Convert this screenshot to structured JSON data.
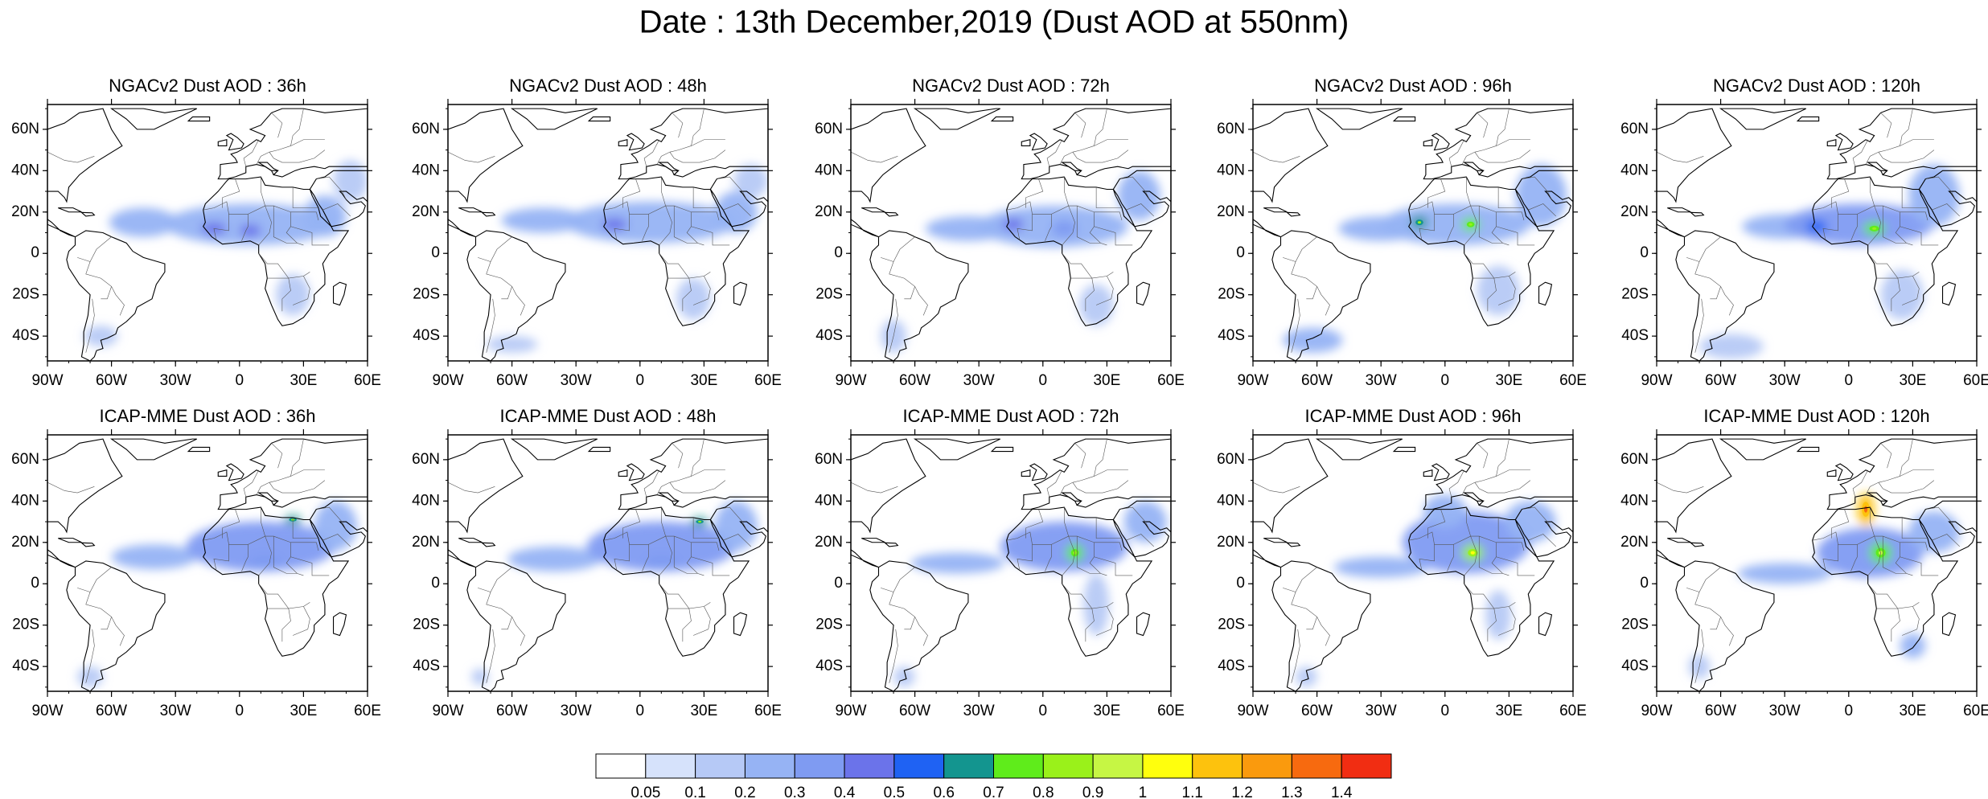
{
  "title": "Date : 13th December,2019 (Dust AOD at 550nm)",
  "panels": [
    {
      "title": "NGACv2 Dust AOD : 36h",
      "model": "NGACv2",
      "lead": "36h",
      "dust": [
        [
          -45,
          15,
          16,
          7,
          0.2
        ],
        [
          5,
          14,
          40,
          10,
          0.25
        ],
        [
          -12,
          12,
          6,
          3,
          0.45
        ],
        [
          5,
          11,
          5,
          3,
          0.4
        ],
        [
          40,
          18,
          10,
          10,
          0.2
        ],
        [
          52,
          35,
          8,
          10,
          0.15
        ],
        [
          -65,
          -40,
          8,
          5,
          0.12
        ],
        [
          25,
          -20,
          8,
          10,
          0.1
        ]
      ]
    },
    {
      "title": "NGACv2 Dust AOD : 48h",
      "model": "NGACv2",
      "lead": "48h",
      "dust": [
        [
          -45,
          16,
          20,
          6,
          0.22
        ],
        [
          5,
          15,
          40,
          10,
          0.25
        ],
        [
          -12,
          14,
          6,
          3,
          0.4
        ],
        [
          45,
          20,
          10,
          10,
          0.2
        ],
        [
          52,
          35,
          8,
          8,
          0.15
        ],
        [
          -60,
          -44,
          12,
          4,
          0.12
        ],
        [
          25,
          -22,
          8,
          10,
          0.1
        ]
      ]
    },
    {
      "title": "NGACv2 Dust AOD : 72h",
      "model": "NGACv2",
      "lead": "72h",
      "dust": [
        [
          -35,
          12,
          20,
          6,
          0.2
        ],
        [
          5,
          13,
          35,
          10,
          0.22
        ],
        [
          -14,
          14,
          5,
          3,
          0.45
        ],
        [
          10,
          12,
          6,
          4,
          0.3
        ],
        [
          45,
          28,
          10,
          12,
          0.2
        ],
        [
          -70,
          -40,
          6,
          8,
          0.15
        ],
        [
          25,
          -25,
          8,
          10,
          0.1
        ]
      ]
    },
    {
      "title": "NGACv2 Dust AOD : 96h",
      "model": "NGACv2",
      "lead": "96h",
      "dust": [
        [
          -30,
          12,
          20,
          6,
          0.22
        ],
        [
          5,
          14,
          35,
          10,
          0.25
        ],
        [
          -12,
          15,
          4,
          3,
          0.6
        ],
        [
          12,
          14,
          4,
          3,
          0.7
        ],
        [
          45,
          28,
          12,
          15,
          0.2
        ],
        [
          -62,
          -42,
          14,
          6,
          0.2
        ],
        [
          25,
          -18,
          10,
          12,
          0.12
        ]
      ]
    },
    {
      "title": "NGACv2 Dust AOD : 120h",
      "model": "NGACv2",
      "lead": "120h",
      "dust": [
        [
          -30,
          13,
          20,
          6,
          0.25
        ],
        [
          5,
          14,
          35,
          10,
          0.3
        ],
        [
          -15,
          13,
          5,
          3,
          0.5
        ],
        [
          12,
          12,
          5,
          3,
          0.7
        ],
        [
          40,
          28,
          12,
          15,
          0.25
        ],
        [
          -55,
          -45,
          15,
          6,
          0.15
        ],
        [
          25,
          -20,
          10,
          12,
          0.15
        ]
      ]
    },
    {
      "title": "ICAP-MME Dust AOD : 36h",
      "model": "ICAP-MME",
      "lead": "36h",
      "dust": [
        [
          -40,
          13,
          20,
          6,
          0.22
        ],
        [
          10,
          18,
          35,
          12,
          0.3
        ],
        [
          25,
          31,
          4,
          2,
          0.6
        ],
        [
          12,
          10,
          8,
          4,
          0.35
        ],
        [
          45,
          28,
          10,
          12,
          0.25
        ],
        [
          -70,
          -45,
          6,
          5,
          0.1
        ]
      ]
    },
    {
      "title": "ICAP-MME Dust AOD : 48h",
      "model": "ICAP-MME",
      "lead": "48h",
      "dust": [
        [
          -40,
          12,
          22,
          6,
          0.22
        ],
        [
          10,
          18,
          35,
          12,
          0.3
        ],
        [
          28,
          30,
          4,
          2,
          0.6
        ],
        [
          10,
          10,
          8,
          4,
          0.3
        ],
        [
          45,
          28,
          10,
          12,
          0.25
        ],
        [
          -75,
          -45,
          4,
          4,
          0.1
        ]
      ]
    },
    {
      "title": "ICAP-MME Dust AOD : 72h",
      "model": "ICAP-MME",
      "lead": "72h",
      "dust": [
        [
          -40,
          10,
          22,
          5,
          0.2
        ],
        [
          10,
          18,
          30,
          12,
          0.3
        ],
        [
          15,
          15,
          4,
          4,
          0.7
        ],
        [
          48,
          30,
          10,
          10,
          0.25
        ],
        [
          25,
          -10,
          6,
          15,
          0.12
        ],
        [
          -65,
          -45,
          5,
          5,
          0.12
        ]
      ]
    },
    {
      "title": "ICAP-MME Dust AOD : 96h",
      "model": "ICAP-MME",
      "lead": "96h",
      "dust": [
        [
          -30,
          8,
          22,
          5,
          0.2
        ],
        [
          10,
          20,
          30,
          15,
          0.3
        ],
        [
          13,
          15,
          5,
          4,
          0.85
        ],
        [
          0,
          35,
          10,
          8,
          0.2
        ],
        [
          40,
          30,
          12,
          10,
          0.25
        ],
        [
          25,
          -15,
          6,
          12,
          0.12
        ],
        [
          -65,
          -45,
          5,
          5,
          0.1
        ]
      ]
    },
    {
      "title": "ICAP-MME Dust AOD : 120h",
      "model": "ICAP-MME",
      "lead": "120h",
      "dust": [
        [
          -30,
          5,
          22,
          5,
          0.2
        ],
        [
          10,
          15,
          25,
          12,
          0.3
        ],
        [
          8,
          36,
          4,
          8,
          1.1
        ],
        [
          15,
          15,
          5,
          5,
          0.75
        ],
        [
          40,
          25,
          12,
          10,
          0.25
        ],
        [
          30,
          -30,
          6,
          6,
          0.2
        ],
        [
          -70,
          -40,
          5,
          6,
          0.12
        ]
      ]
    }
  ],
  "lat_ticks": [
    "60N",
    "40N",
    "20N",
    "0",
    "20S",
    "40S"
  ],
  "lon_ticks": [
    "90W",
    "60W",
    "30W",
    "0",
    "30E",
    "60E"
  ],
  "colorbar": {
    "labels": [
      "0.05",
      "0.1",
      "0.2",
      "0.3",
      "0.4",
      "0.5",
      "0.6",
      "0.7",
      "0.8",
      "0.9",
      "1",
      "1.1",
      "1.2",
      "1.3",
      "1.4"
    ],
    "colors": [
      "#ffffff",
      "#d6e2fb",
      "#b6c9f6",
      "#96b3f4",
      "#7f9bf2",
      "#6b73ea",
      "#1f62f3",
      "#13958f",
      "#5fec1b",
      "#9af11a",
      "#c6f644",
      "#ffff0d",
      "#fdc20d",
      "#fa9a0d",
      "#f76a0f",
      "#f12d12"
    ]
  },
  "colors": {
    "coast": "#000000",
    "border": "#555555",
    "frame": "#000000"
  }
}
